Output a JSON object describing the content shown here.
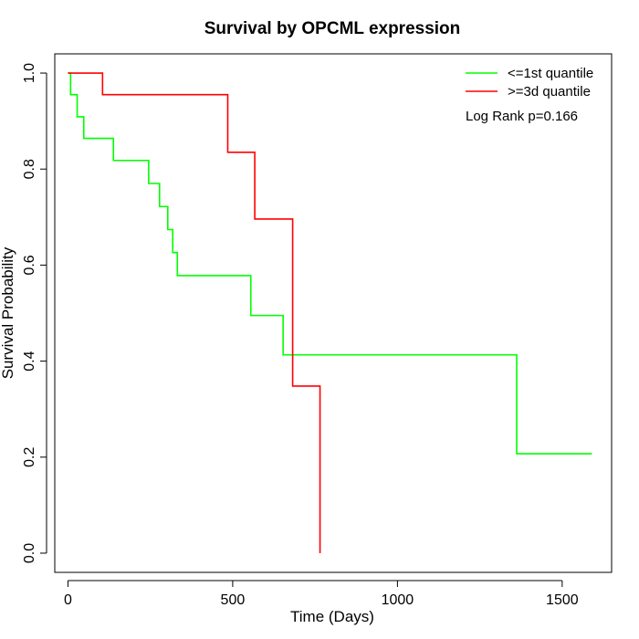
{
  "chart_data": {
    "type": "line",
    "title": "Survival by OPCML expression",
    "xlabel": "Time (Days)",
    "ylabel": "Survival Probability",
    "xlim": [
      -40,
      1650
    ],
    "ylim": [
      -0.04,
      1.04
    ],
    "x_ticks": [
      0,
      500,
      1000,
      1500
    ],
    "y_ticks": [
      0.0,
      0.2,
      0.4,
      0.6,
      0.8,
      1.0
    ],
    "x_tick_labels": [
      "0",
      "500",
      "1000",
      "1500"
    ],
    "y_tick_labels": [
      "0.0",
      "0.2",
      "0.4",
      "0.6",
      "0.8",
      "1.0"
    ],
    "grid": false,
    "legend_position": "top-right",
    "annotation": "Log Rank p=0.166",
    "series": [
      {
        "name": "<=1st quantile",
        "color": "#00ff00",
        "step": true,
        "x": [
          0,
          8,
          28,
          48,
          138,
          245,
          278,
          303,
          318,
          332,
          555,
          653,
          1362,
          1590
        ],
        "y": [
          1.0,
          0.955,
          0.909,
          0.864,
          0.818,
          0.77,
          0.722,
          0.674,
          0.626,
          0.578,
          0.495,
          0.413,
          0.207,
          0.207
        ]
      },
      {
        "name": ">=3d quantile",
        "color": "#ff0000",
        "step": true,
        "x": [
          0,
          105,
          485,
          567,
          682,
          765,
          765
        ],
        "y": [
          1.0,
          0.955,
          0.835,
          0.696,
          0.348,
          0.0,
          0.0
        ]
      }
    ]
  }
}
